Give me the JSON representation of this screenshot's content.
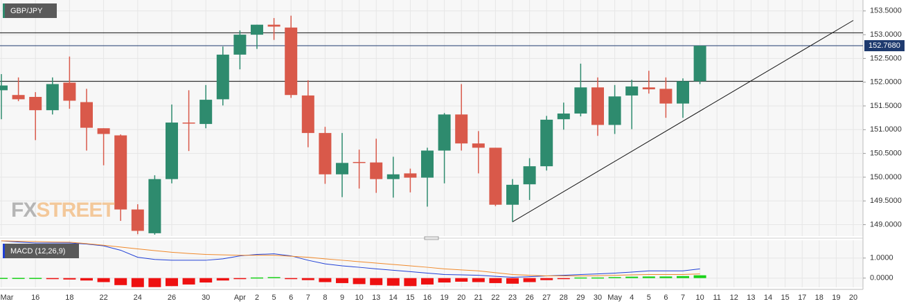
{
  "chart_data": [
    {
      "type": "candlestick",
      "title": "GBP/JPY",
      "watermark": [
        "FX",
        "STREET"
      ],
      "categories": [
        "Mar",
        null,
        "16",
        null,
        "18",
        null,
        "22",
        null,
        "24",
        null,
        "26",
        null,
        "30",
        null,
        "Apr",
        "2",
        "5",
        "6",
        "7",
        "8",
        "9",
        "10",
        "13",
        "14",
        "15",
        "16",
        "19",
        "20",
        "21",
        "22",
        "23",
        "26",
        "27",
        "28",
        "29",
        "30",
        "May",
        "4",
        "5",
        "6",
        "7",
        "10",
        "11",
        "12",
        "13",
        "14",
        "15",
        "17",
        "18",
        "19",
        "20"
      ],
      "open": [
        151.83,
        151.73,
        151.69,
        151.41,
        151.99,
        151.58,
        151.03,
        150.88,
        149.32,
        148.82,
        149.96,
        151.15,
        151.12,
        151.64,
        152.58,
        153.0,
        153.21,
        153.15,
        151.72,
        150.93,
        150.06,
        150.32,
        150.31,
        149.96,
        150.08,
        149.99,
        150.56,
        151.32,
        150.71,
        150.62,
        149.42,
        149.85,
        150.23,
        151.22,
        151.34,
        151.89,
        151.1,
        151.72,
        151.89,
        151.86,
        151.55,
        152.02,
        null,
        null,
        null,
        null,
        null,
        null,
        null,
        null,
        null
      ],
      "high": [
        152.17,
        152.1,
        151.79,
        152.1,
        152.54,
        151.86,
        151.03,
        150.9,
        149.43,
        150.04,
        151.53,
        151.83,
        151.94,
        152.75,
        153.09,
        153.21,
        153.35,
        153.4,
        152.04,
        151.06,
        150.93,
        150.58,
        150.81,
        150.43,
        150.18,
        150.62,
        151.35,
        151.96,
        150.97,
        150.62,
        149.96,
        150.4,
        151.29,
        151.57,
        152.39,
        152.1,
        151.94,
        152.05,
        152.24,
        152.1,
        152.08,
        152.77,
        null,
        null,
        null,
        null,
        null,
        null,
        null,
        null,
        null
      ],
      "low": [
        151.22,
        151.6,
        150.78,
        151.32,
        151.44,
        150.56,
        150.25,
        149.08,
        148.8,
        148.79,
        149.87,
        150.55,
        151.03,
        151.51,
        152.27,
        152.7,
        152.89,
        151.67,
        150.63,
        149.86,
        149.58,
        149.76,
        149.67,
        149.57,
        149.68,
        149.38,
        149.87,
        150.56,
        150.08,
        149.39,
        149.06,
        149.52,
        150.14,
        151.0,
        151.28,
        150.87,
        150.91,
        151.01,
        151.76,
        151.25,
        151.25,
        151.96,
        null,
        null,
        null,
        null,
        null,
        null,
        null,
        null,
        null
      ],
      "close": [
        151.93,
        151.64,
        151.41,
        151.96,
        151.61,
        151.04,
        150.91,
        149.32,
        148.87,
        149.96,
        151.15,
        151.13,
        151.63,
        152.58,
        153.0,
        153.21,
        153.17,
        151.73,
        150.93,
        150.06,
        150.3,
        150.31,
        149.96,
        150.06,
        149.99,
        150.56,
        151.32,
        150.71,
        150.62,
        149.42,
        149.84,
        150.23,
        151.21,
        151.34,
        151.89,
        151.1,
        151.7,
        151.91,
        151.85,
        151.55,
        152.02,
        152.768,
        null,
        null,
        null,
        null,
        null,
        null,
        null,
        null,
        null
      ],
      "up_color": "#2e8b6e",
      "down_color": "#d9594a",
      "levels": [
        153.04,
        152.02
      ],
      "level_color": "#111111",
      "last_price": {
        "value": 152.768,
        "label": "152.7680"
      },
      "last_price_color": "#1e3a6e",
      "trendline": [
        null,
        null,
        null,
        null,
        null,
        null,
        null,
        null,
        null,
        null,
        null,
        null,
        null,
        null,
        null,
        null,
        null,
        null,
        null,
        null,
        null,
        null,
        null,
        null,
        null,
        null,
        null,
        null,
        null,
        null,
        149.06,
        null,
        null,
        null,
        null,
        null,
        null,
        null,
        null,
        null,
        null,
        null,
        null,
        null,
        null,
        null,
        null,
        null,
        null,
        null,
        153.3
      ],
      "ylim": [
        148.76,
        153.73
      ],
      "yticks": [
        {
          "value": 149.0,
          "label": "149.0000"
        },
        {
          "value": 149.5,
          "label": "149.5000"
        },
        {
          "value": 150.0,
          "label": "150.0000"
        },
        {
          "value": 150.5,
          "label": "150.5000"
        },
        {
          "value": 151.0,
          "label": "151.0000"
        },
        {
          "value": 151.5,
          "label": "151.5000"
        },
        {
          "value": 152.0,
          "label": "152.0000"
        },
        {
          "value": 152.5,
          "label": "152.5000"
        },
        {
          "value": 153.0,
          "label": "153.0000"
        },
        {
          "value": 153.5,
          "label": "153.5000"
        }
      ],
      "grid": true
    },
    {
      "type": "macd",
      "title": "MACD (12,26,9)",
      "series": [
        {
          "color": "#1f3fd6",
          "values": [
            1.86,
            1.8,
            1.75,
            1.75,
            1.75,
            1.7,
            1.61,
            1.39,
            1.04,
            0.93,
            0.89,
            0.89,
            0.89,
            0.96,
            1.11,
            1.18,
            1.21,
            1.11,
            0.89,
            0.71,
            0.61,
            0.54,
            0.46,
            0.39,
            0.32,
            0.25,
            0.18,
            0.16,
            0.14,
            0.09,
            0.04,
            0.07,
            0.11,
            0.14,
            0.18,
            0.21,
            0.25,
            0.3,
            0.36,
            0.36,
            0.36,
            0.46,
            null,
            null,
            null,
            null,
            null,
            null,
            null,
            null,
            null
          ]
        },
        {
          "color": "#f0892a",
          "values": [
            1.86,
            1.84,
            1.82,
            1.8,
            1.79,
            1.72,
            1.64,
            1.55,
            1.46,
            1.37,
            1.29,
            1.23,
            1.18,
            1.16,
            1.14,
            1.14,
            1.14,
            1.09,
            1.04,
            0.96,
            0.89,
            0.82,
            0.75,
            0.68,
            0.61,
            0.54,
            0.46,
            0.41,
            0.36,
            0.27,
            0.18,
            0.14,
            0.11,
            0.11,
            0.11,
            0.12,
            0.14,
            0.16,
            0.18,
            0.18,
            0.18,
            0.21,
            null,
            null,
            null,
            null,
            null,
            null,
            null,
            null,
            null
          ]
        }
      ],
      "histogram": {
        "up_color": "#19d219",
        "down_color": "#ee1111",
        "values": [
          0.01,
          0.01,
          0.01,
          -0.03,
          -0.07,
          -0.12,
          -0.2,
          -0.35,
          -0.45,
          -0.45,
          -0.4,
          -0.32,
          -0.22,
          -0.12,
          -0.05,
          0.03,
          0.05,
          -0.01,
          -0.1,
          -0.2,
          -0.25,
          -0.3,
          -0.35,
          -0.38,
          -0.4,
          -0.32,
          -0.22,
          -0.18,
          -0.2,
          -0.25,
          -0.28,
          -0.2,
          -0.1,
          -0.03,
          0.03,
          0.03,
          0.05,
          0.07,
          0.08,
          0.08,
          0.1,
          0.14,
          null,
          null,
          null,
          null,
          null,
          null,
          null,
          null,
          null
        ]
      },
      "ylim": [
        -0.46,
        1.89
      ],
      "yticks": [
        {
          "value": 0,
          "label": "0.0000"
        },
        {
          "value": 1,
          "label": "1.0000"
        }
      ],
      "grid": true
    }
  ]
}
